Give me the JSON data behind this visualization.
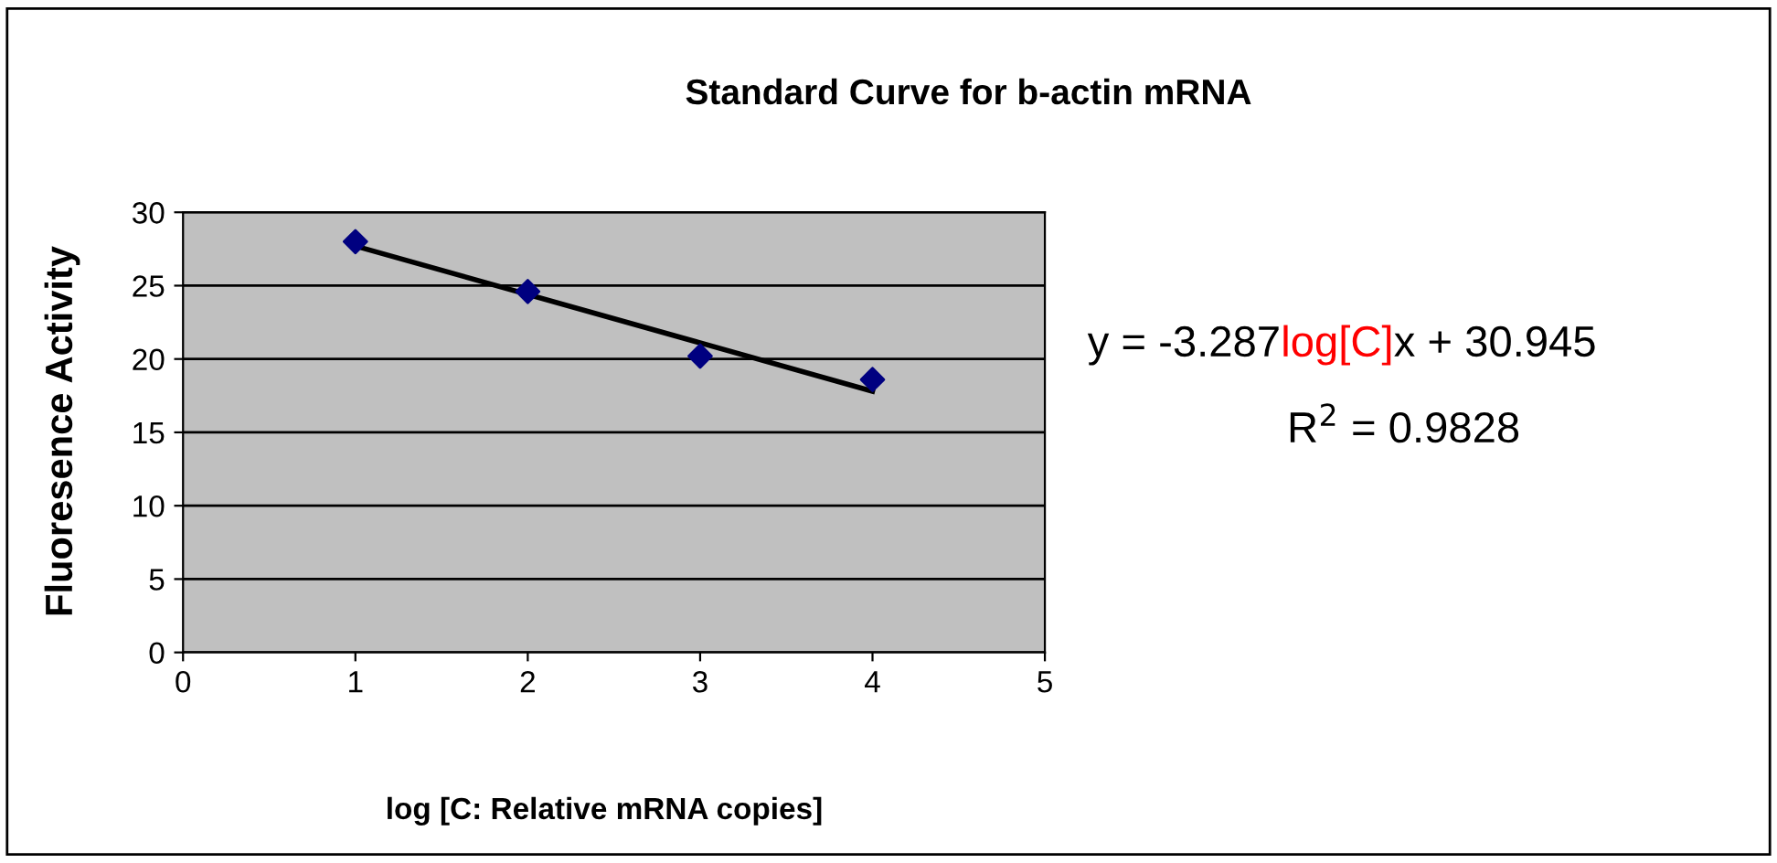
{
  "chart_data": {
    "type": "scatter",
    "title": "Standard Curve for b-actin mRNA",
    "xlabel": "log [C: Relative mRNA copies]",
    "ylabel": "Fluoresence Activity",
    "x": [
      1,
      2,
      3,
      4
    ],
    "series": [
      {
        "color": "#000080",
        "marker": "diamond",
        "values": [
          28,
          24.6,
          20.2,
          18.6
        ]
      },
      {
        "type": "line",
        "color": "#000000",
        "marker": "none",
        "line_style": "solid",
        "x": [
          1,
          4
        ],
        "values": [
          27.7,
          17.8
        ]
      }
    ],
    "xlim": [
      0,
      5
    ],
    "xticks": [
      0,
      1,
      2,
      3,
      4,
      5
    ],
    "ylim": [
      0,
      30
    ],
    "yticks": [
      0,
      5,
      10,
      15,
      20,
      25,
      30
    ],
    "grid": "y",
    "legend": false,
    "annotations": [
      "y = -3.287",
      "log[C]",
      "x + 30.945",
      "R$^{2}$ = 0.9828"
    ]
  }
}
